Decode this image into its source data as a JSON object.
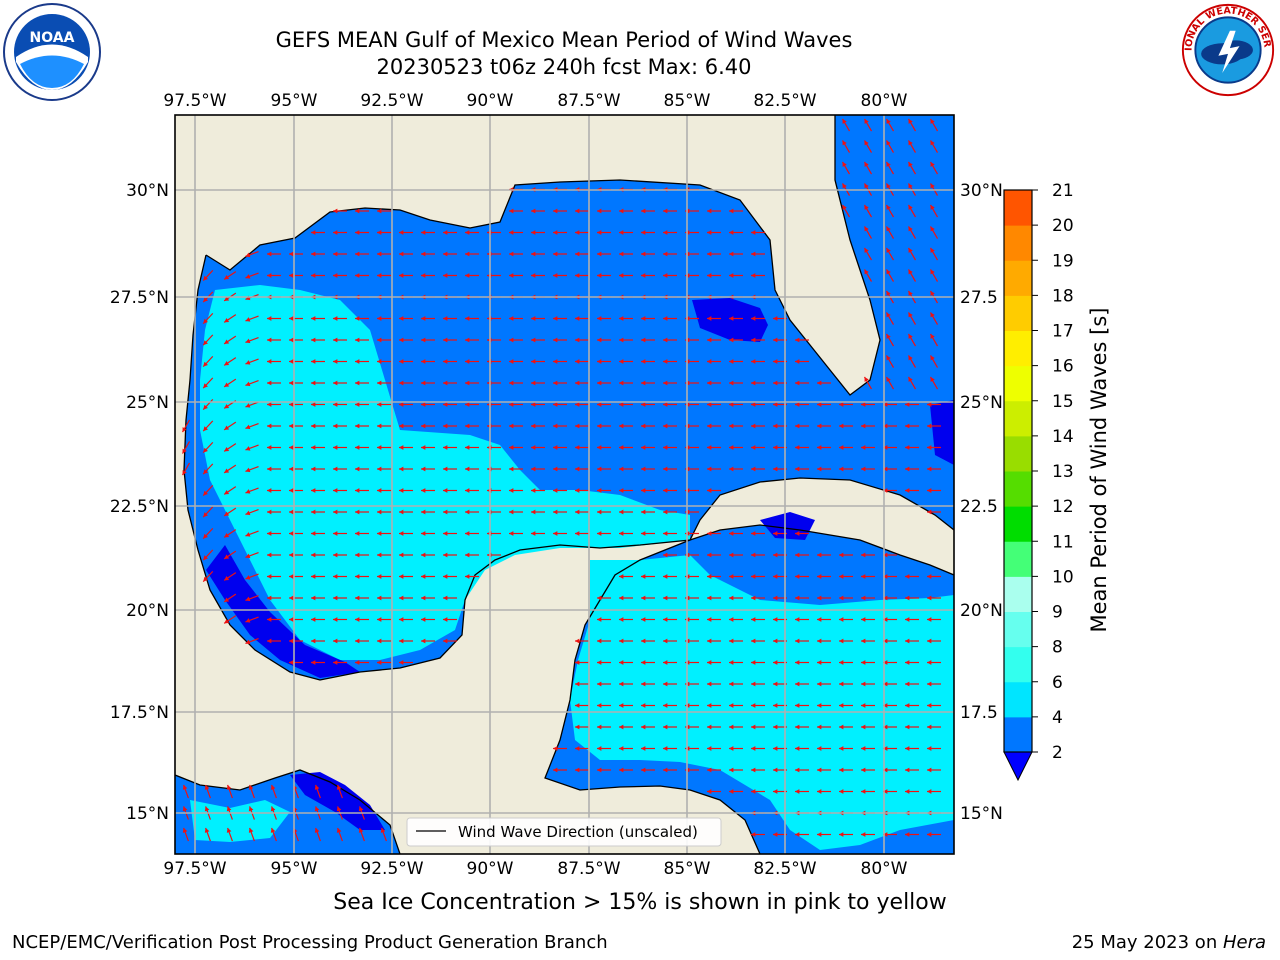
{
  "header": {
    "title_line1": "GEFS MEAN Gulf of Mexico Mean Period of Wind Waves",
    "title_line2": "20230523 t06z 240h fcst   Max: 6.40"
  },
  "logos": {
    "left": "NOAA",
    "right": "NATIONAL WEATHER SERVICE"
  },
  "map": {
    "lon_labels": [
      "97.5°W",
      "95°W",
      "92.5°W",
      "90°W",
      "87.5°W",
      "85°W",
      "82.5°W",
      "80°W"
    ],
    "lat_labels": [
      "30°N",
      "27.5°N",
      "25°N",
      "22.5°N",
      "20°N",
      "17.5°N",
      "15°N"
    ],
    "lat_labels_right": [
      "30°N",
      "27.5",
      "25°N",
      "22.5",
      "20°N",
      "17.5",
      "15°N"
    ],
    "legend_label": "Wind Wave Direction (unscaled)"
  },
  "colorbar": {
    "label": "Mean Period of Wind Waves [s]",
    "ticks": [
      "2",
      "4",
      "6",
      "8",
      "9",
      "10",
      "11",
      "12",
      "13",
      "14",
      "15",
      "16",
      "17",
      "18",
      "19",
      "20",
      "21"
    ],
    "colors": [
      "#0077ff",
      "#00e5ff",
      "#33ffee",
      "#66ffee",
      "#aaffee",
      "#44ff77",
      "#00dd00",
      "#55dd00",
      "#99dd00",
      "#ccee00",
      "#eeff00",
      "#ffee00",
      "#ffcc00",
      "#ffaa00",
      "#ff8800",
      "#ff5500",
      "#ff2200",
      "#ff0000"
    ],
    "extend_color": "#0000ff"
  },
  "footer": {
    "ice_note": "Sea Ice Concentration > 15% is shown in pink to yellow",
    "credit_left": "NCEP/EMC/Verification Post Processing Product Generation Branch",
    "credit_date": "25 May 2023 on ",
    "credit_machine": "Hera"
  }
}
